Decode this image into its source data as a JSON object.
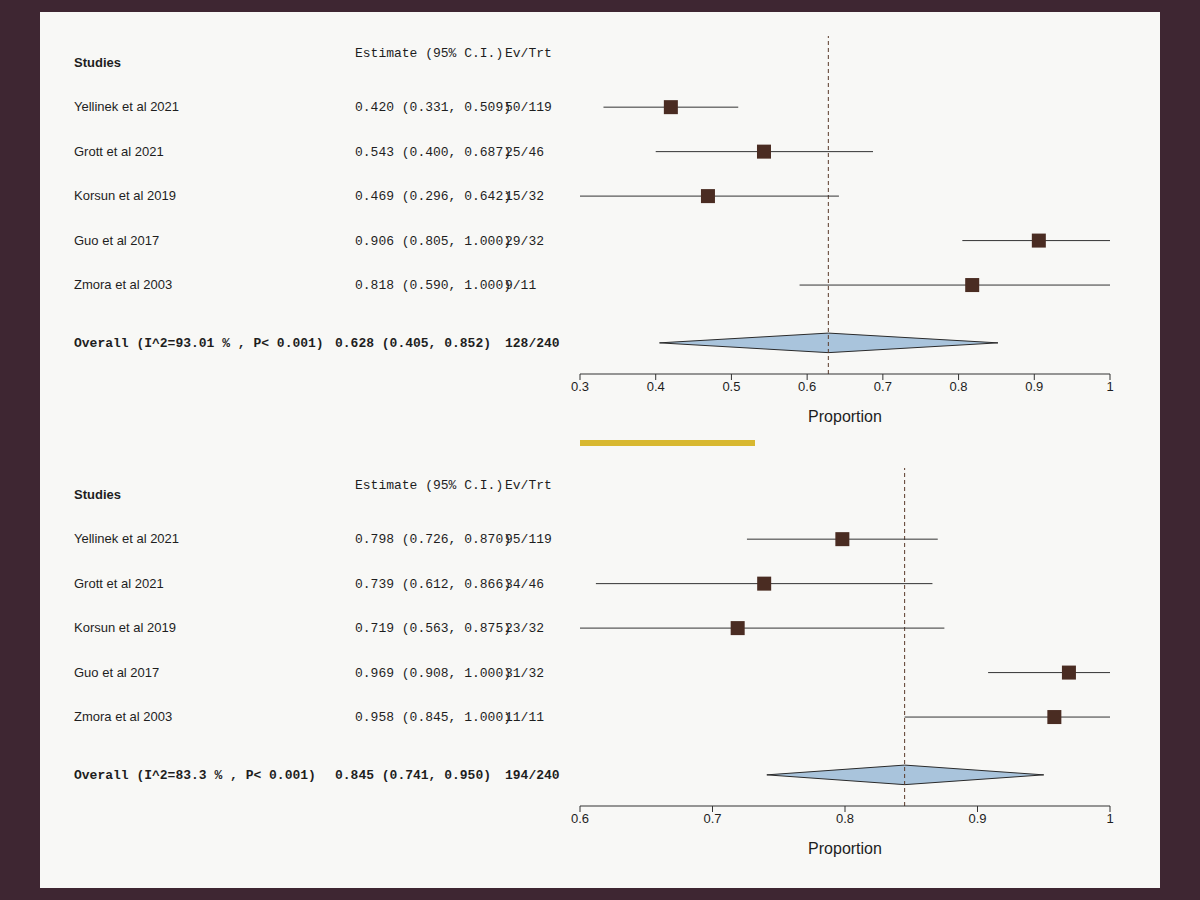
{
  "chart_data": [
    {
      "type": "forest",
      "x_label": "Proportion",
      "columns": [
        "Studies",
        "Estimate (95% C.I.)",
        "Ev/Trt"
      ],
      "color": "#4a2c22",
      "studies": [
        {
          "name": "Yellinek et al 2021",
          "estimate": 0.42,
          "ci": [
            0.331,
            0.509
          ],
          "value_label": "0.420 (0.331, 0.509)",
          "ev_trt": "50/119"
        },
        {
          "name": "Grott et al 2021",
          "estimate": 0.543,
          "ci": [
            0.4,
            0.687
          ],
          "value_label": "0.543 (0.400, 0.687)",
          "ev_trt": "25/46"
        },
        {
          "name": "Korsun et al 2019",
          "estimate": 0.469,
          "ci": [
            0.296,
            0.642
          ],
          "value_label": "0.469 (0.296, 0.642)",
          "ev_trt": "15/32"
        },
        {
          "name": "Guo et al 2017",
          "estimate": 0.906,
          "ci": [
            0.805,
            1.0
          ],
          "value_label": "0.906 (0.805, 1.000)",
          "ev_trt": "29/32"
        },
        {
          "name": "Zmora et al 2003",
          "estimate": 0.818,
          "ci": [
            0.59,
            1.0
          ],
          "value_label": "0.818 (0.590, 1.000)",
          "ev_trt": "9/11"
        }
      ],
      "overall": {
        "label": "Overall (I^2=93.01 % , P< 0.001)",
        "estimate": 0.628,
        "ci": [
          0.405,
          0.852
        ],
        "value_label": "0.628 (0.405, 0.852)",
        "ev_trt": "128/240"
      },
      "xlim": [
        0.3,
        1
      ],
      "xticks": [
        0.3,
        0.4,
        0.5,
        0.6,
        0.7,
        0.8,
        0.9,
        1
      ]
    },
    {
      "type": "forest",
      "x_label": "Proportion",
      "columns": [
        "Studies",
        "Estimate (95% C.I.)",
        "Ev/Trt"
      ],
      "color": "#4a2c22",
      "studies": [
        {
          "name": "Yellinek et al 2021",
          "estimate": 0.798,
          "ci": [
            0.726,
            0.87
          ],
          "value_label": "0.798 (0.726, 0.870)",
          "ev_trt": "95/119"
        },
        {
          "name": "Grott et al 2021",
          "estimate": 0.739,
          "ci": [
            0.612,
            0.866
          ],
          "value_label": "0.739 (0.612, 0.866)",
          "ev_trt": "34/46"
        },
        {
          "name": "Korsun et al 2019",
          "estimate": 0.719,
          "ci": [
            0.563,
            0.875
          ],
          "value_label": "0.719 (0.563, 0.875)",
          "ev_trt": "23/32"
        },
        {
          "name": "Guo et al 2017",
          "estimate": 0.969,
          "ci": [
            0.908,
            1.0
          ],
          "value_label": "0.969 (0.908, 1.000)",
          "ev_trt": "31/32"
        },
        {
          "name": "Zmora et al 2003",
          "estimate": 0.958,
          "ci": [
            0.845,
            1.0
          ],
          "value_label": "0.958 (0.845, 1.000)",
          "ev_trt": "11/11"
        }
      ],
      "overall": {
        "label": "Overall (I^2=83.3 % , P< 0.001)",
        "estimate": 0.845,
        "ci": [
          0.741,
          0.95
        ],
        "value_label": "0.845 (0.741, 0.950)",
        "ev_trt": "194/240"
      },
      "xlim": [
        0.6,
        1
      ],
      "xticks": [
        0.6,
        0.7,
        0.8,
        0.9,
        1
      ]
    }
  ]
}
